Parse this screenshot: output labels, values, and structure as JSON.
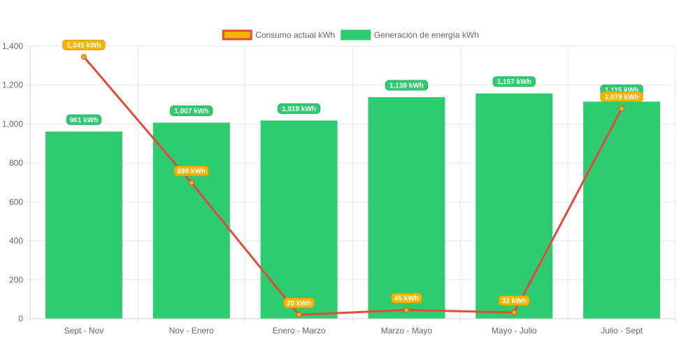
{
  "chart_data": {
    "type": "bar",
    "categories": [
      "Sept - Nov",
      "Nov - Enero",
      "Enero - Marzo",
      "Marzo - Mayo",
      "Mayo - Julio",
      "Julio - Sept"
    ],
    "series": [
      {
        "name": "Consumo actual kWh",
        "type": "line",
        "values": [
          1345,
          698,
          20,
          45,
          32,
          1079
        ],
        "labels": [
          "1,345 kWh",
          "698 kWh",
          "20 kWh",
          "45 kWh",
          "32 kWh",
          "1,079 kWh"
        ],
        "line_color": "#e04b3a",
        "point_fill": "#f5b400",
        "label_bg": "#f5b400",
        "label_border": "#e09a00"
      },
      {
        "name": "Generación de energía kWh",
        "type": "bar",
        "values": [
          961,
          1007,
          1018,
          1138,
          1157,
          1115
        ],
        "labels": [
          "961 kWh",
          "1,007 kWh",
          "1,018 kWh",
          "1,138 kWh",
          "1,157 kWh",
          "1,115 kWh"
        ],
        "bar_color": "#2ecc71",
        "label_bg": "#2ecc71",
        "label_border": "#27ae60"
      }
    ],
    "y_ticks": [
      "0",
      "200",
      "400",
      "600",
      "800",
      "1,000",
      "1,200",
      "1,400"
    ],
    "y_tick_values": [
      0,
      200,
      400,
      600,
      800,
      1000,
      1200,
      1400
    ],
    "ylim": [
      0,
      1400
    ],
    "title": "",
    "xlabel": "",
    "ylabel": "",
    "grid": true,
    "legend_position": "top-center",
    "legend": [
      {
        "label": "Consumo actual kWh",
        "fill": "#f5b400",
        "stroke": "#e04b3a"
      },
      {
        "label": "Generación de energía kWh",
        "fill": "#2ecc71",
        "stroke": "#2ecc71"
      }
    ],
    "colors": {
      "grid": "#e6e6e6",
      "axis": "#cccccc",
      "tick_text": "#666666"
    }
  }
}
